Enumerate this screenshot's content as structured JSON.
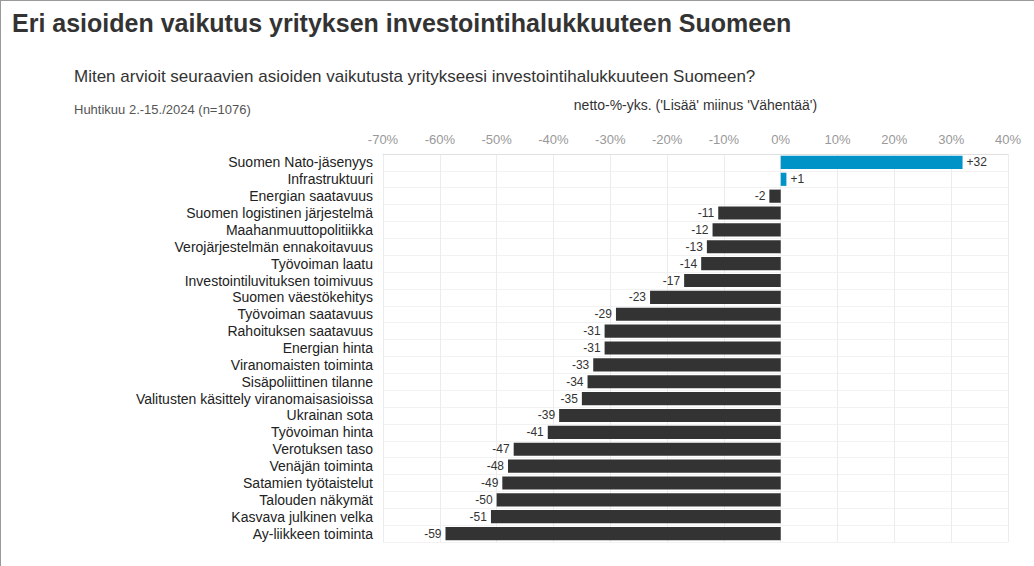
{
  "chart_data": {
    "type": "bar",
    "orientation": "horizontal",
    "title": "Eri asioiden vaikutus yrityksen investointihalukkuuteen Suomeen",
    "subtitle": "Miten arvioit seuraavien asioiden vaikutusta yritykseesi investointihalukkuuteen Suomeen?",
    "annotations": [
      "Huhtikuu 2.-15./2024 (n=1076)"
    ],
    "xlabel": "netto-%-yks. ('Lisää' miinus 'Vähentää')",
    "categories": [
      "Suomen Nato-jäsenyys",
      "Infrastruktuuri",
      "Energian saatavuus",
      "Suomen logistinen järjestelmä",
      "Maahanmuuttopolitiikka",
      "Verojärjestelmän ennakoitavuus",
      "Työvoiman laatu",
      "Investointiluvituksen toimivuus",
      "Suomen väestökehitys",
      "Työvoiman saatavuus",
      "Rahoituksen saatavuus",
      "Energian hinta",
      "Viranomaisten toiminta",
      "Sisäpoliittinen tilanne",
      "Valitusten käsittely viranomaisasioissa",
      "Ukrainan sota",
      "Työvoiman hinta",
      "Verotuksen taso",
      "Venäjän toiminta",
      "Satamien työtaistelut",
      "Talouden näkymät",
      "Kasvava julkinen velka",
      "Ay-liikkeen toiminta"
    ],
    "values": [
      32,
      1,
      -2,
      -11,
      -12,
      -13,
      -14,
      -17,
      -23,
      -29,
      -31,
      -31,
      -33,
      -34,
      -35,
      -39,
      -41,
      -47,
      -48,
      -49,
      -50,
      -51,
      -59
    ],
    "value_labels": [
      "+32",
      "+1",
      "-2",
      "-11",
      "-12",
      "-13",
      "-14",
      "-17",
      "-23",
      "-29",
      "-31",
      "-31",
      "-33",
      "-34",
      "-35",
      "-39",
      "-41",
      "-47",
      "-48",
      "-49",
      "-50",
      "-51",
      "-59"
    ],
    "colors": [
      "#0093c8",
      "#0093c8",
      "#333333",
      "#333333",
      "#333333",
      "#333333",
      "#333333",
      "#333333",
      "#333333",
      "#333333",
      "#333333",
      "#333333",
      "#333333",
      "#333333",
      "#333333",
      "#333333",
      "#333333",
      "#333333",
      "#333333",
      "#333333",
      "#333333",
      "#333333",
      "#333333"
    ],
    "xlim": [
      -70,
      40
    ],
    "xticks": [
      {
        "value": -70,
        "label": "-70%"
      },
      {
        "value": -60,
        "label": "-60%"
      },
      {
        "value": -50,
        "label": "-50%"
      },
      {
        "value": -40,
        "label": "-40%"
      },
      {
        "value": -30,
        "label": "-30%"
      },
      {
        "value": -20,
        "label": "-20%"
      },
      {
        "value": -10,
        "label": "-10%"
      },
      {
        "value": 0,
        "label": "0%"
      },
      {
        "value": 10,
        "label": "10%"
      },
      {
        "value": 20,
        "label": "20%"
      },
      {
        "value": 30,
        "label": "30%"
      },
      {
        "value": 40,
        "label": "40%"
      }
    ],
    "grid": true,
    "data_labels": true
  }
}
